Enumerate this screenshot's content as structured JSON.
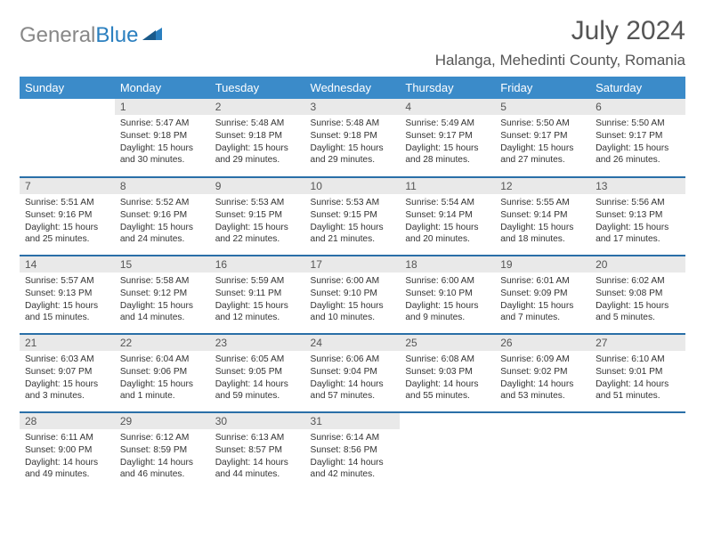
{
  "logo": {
    "gray": "General",
    "blue": "Blue"
  },
  "title": "July 2024",
  "location": "Halanga, Mehedinti County, Romania",
  "colors": {
    "header_bg": "#3b8bc9",
    "header_text": "#ffffff",
    "row_border": "#2a6fa8",
    "daynum_bg": "#e9e9e9",
    "body_text": "#333333",
    "title_text": "#555555"
  },
  "weekdays": [
    "Sunday",
    "Monday",
    "Tuesday",
    "Wednesday",
    "Thursday",
    "Friday",
    "Saturday"
  ],
  "weeks": [
    [
      null,
      {
        "n": "1",
        "sr": "5:47 AM",
        "ss": "9:18 PM",
        "dl": "15 hours and 30 minutes."
      },
      {
        "n": "2",
        "sr": "5:48 AM",
        "ss": "9:18 PM",
        "dl": "15 hours and 29 minutes."
      },
      {
        "n": "3",
        "sr": "5:48 AM",
        "ss": "9:18 PM",
        "dl": "15 hours and 29 minutes."
      },
      {
        "n": "4",
        "sr": "5:49 AM",
        "ss": "9:17 PM",
        "dl": "15 hours and 28 minutes."
      },
      {
        "n": "5",
        "sr": "5:50 AM",
        "ss": "9:17 PM",
        "dl": "15 hours and 27 minutes."
      },
      {
        "n": "6",
        "sr": "5:50 AM",
        "ss": "9:17 PM",
        "dl": "15 hours and 26 minutes."
      }
    ],
    [
      {
        "n": "7",
        "sr": "5:51 AM",
        "ss": "9:16 PM",
        "dl": "15 hours and 25 minutes."
      },
      {
        "n": "8",
        "sr": "5:52 AM",
        "ss": "9:16 PM",
        "dl": "15 hours and 24 minutes."
      },
      {
        "n": "9",
        "sr": "5:53 AM",
        "ss": "9:15 PM",
        "dl": "15 hours and 22 minutes."
      },
      {
        "n": "10",
        "sr": "5:53 AM",
        "ss": "9:15 PM",
        "dl": "15 hours and 21 minutes."
      },
      {
        "n": "11",
        "sr": "5:54 AM",
        "ss": "9:14 PM",
        "dl": "15 hours and 20 minutes."
      },
      {
        "n": "12",
        "sr": "5:55 AM",
        "ss": "9:14 PM",
        "dl": "15 hours and 18 minutes."
      },
      {
        "n": "13",
        "sr": "5:56 AM",
        "ss": "9:13 PM",
        "dl": "15 hours and 17 minutes."
      }
    ],
    [
      {
        "n": "14",
        "sr": "5:57 AM",
        "ss": "9:13 PM",
        "dl": "15 hours and 15 minutes."
      },
      {
        "n": "15",
        "sr": "5:58 AM",
        "ss": "9:12 PM",
        "dl": "15 hours and 14 minutes."
      },
      {
        "n": "16",
        "sr": "5:59 AM",
        "ss": "9:11 PM",
        "dl": "15 hours and 12 minutes."
      },
      {
        "n": "17",
        "sr": "6:00 AM",
        "ss": "9:10 PM",
        "dl": "15 hours and 10 minutes."
      },
      {
        "n": "18",
        "sr": "6:00 AM",
        "ss": "9:10 PM",
        "dl": "15 hours and 9 minutes."
      },
      {
        "n": "19",
        "sr": "6:01 AM",
        "ss": "9:09 PM",
        "dl": "15 hours and 7 minutes."
      },
      {
        "n": "20",
        "sr": "6:02 AM",
        "ss": "9:08 PM",
        "dl": "15 hours and 5 minutes."
      }
    ],
    [
      {
        "n": "21",
        "sr": "6:03 AM",
        "ss": "9:07 PM",
        "dl": "15 hours and 3 minutes."
      },
      {
        "n": "22",
        "sr": "6:04 AM",
        "ss": "9:06 PM",
        "dl": "15 hours and 1 minute."
      },
      {
        "n": "23",
        "sr": "6:05 AM",
        "ss": "9:05 PM",
        "dl": "14 hours and 59 minutes."
      },
      {
        "n": "24",
        "sr": "6:06 AM",
        "ss": "9:04 PM",
        "dl": "14 hours and 57 minutes."
      },
      {
        "n": "25",
        "sr": "6:08 AM",
        "ss": "9:03 PM",
        "dl": "14 hours and 55 minutes."
      },
      {
        "n": "26",
        "sr": "6:09 AM",
        "ss": "9:02 PM",
        "dl": "14 hours and 53 minutes."
      },
      {
        "n": "27",
        "sr": "6:10 AM",
        "ss": "9:01 PM",
        "dl": "14 hours and 51 minutes."
      }
    ],
    [
      {
        "n": "28",
        "sr": "6:11 AM",
        "ss": "9:00 PM",
        "dl": "14 hours and 49 minutes."
      },
      {
        "n": "29",
        "sr": "6:12 AM",
        "ss": "8:59 PM",
        "dl": "14 hours and 46 minutes."
      },
      {
        "n": "30",
        "sr": "6:13 AM",
        "ss": "8:57 PM",
        "dl": "14 hours and 44 minutes."
      },
      {
        "n": "31",
        "sr": "6:14 AM",
        "ss": "8:56 PM",
        "dl": "14 hours and 42 minutes."
      },
      null,
      null,
      null
    ]
  ],
  "labels": {
    "sunrise": "Sunrise: ",
    "sunset": "Sunset: ",
    "daylight": "Daylight: "
  }
}
